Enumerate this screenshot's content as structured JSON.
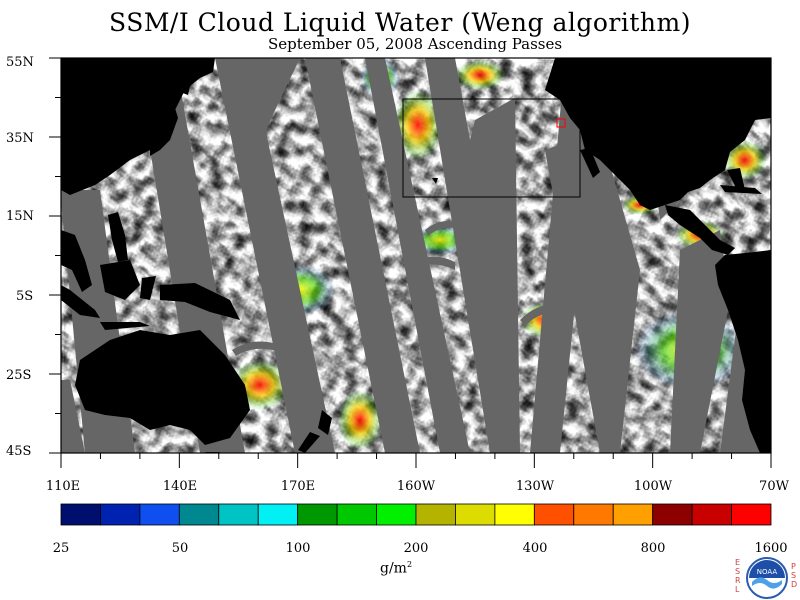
{
  "title": "SSM/I Cloud Liquid Water (Weng algorithm)",
  "subtitle": "September 05, 2008  Ascending Passes",
  "lat_labels": [
    "55N",
    "35N",
    "15N",
    "5S",
    "25S",
    "45S"
  ],
  "lon_labels": [
    "110E",
    "140E",
    "170E",
    "160W",
    "130W",
    "100W",
    "70W"
  ],
  "colorbar": {
    "tick_labels": [
      "25",
      "50",
      "100",
      "200",
      "400",
      "800",
      "1600"
    ],
    "units": "g/m",
    "units_sup": "2",
    "colors": [
      "#000f6e",
      "#0022b0",
      "#0f4ff0",
      "#008890",
      "#00c4c4",
      "#00f0f4",
      "#009800",
      "#00c800",
      "#00f000",
      "#b4b400",
      "#dcdc00",
      "#ffff00",
      "#ff5000",
      "#ff7800",
      "#ffa000",
      "#8c0000",
      "#c80000",
      "#ff0000"
    ]
  },
  "logo": {
    "left_letters": [
      "E",
      "S",
      "R",
      "L"
    ],
    "right_letters": [
      "P",
      "S",
      "D"
    ],
    "center_text": "NOAA"
  },
  "map_colors": {
    "land": "#000000",
    "no_data": "#666666",
    "clear": "#ffffff"
  }
}
